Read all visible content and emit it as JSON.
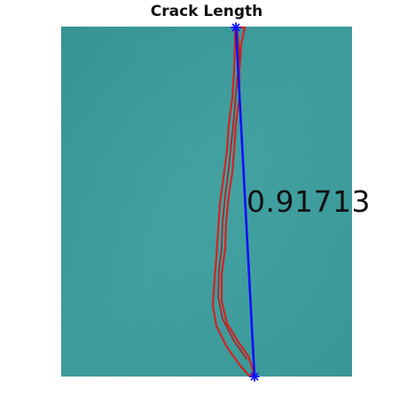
{
  "title": "Crack Length",
  "measurement": {
    "value_label": "0.91713"
  },
  "colors": {
    "background": "#ffffff",
    "panel": "#3f9c9c",
    "crack_outline": "#d42222",
    "length_line": "#1010ff",
    "endpoint_marker": "#1010ff",
    "text": "#111111"
  }
}
